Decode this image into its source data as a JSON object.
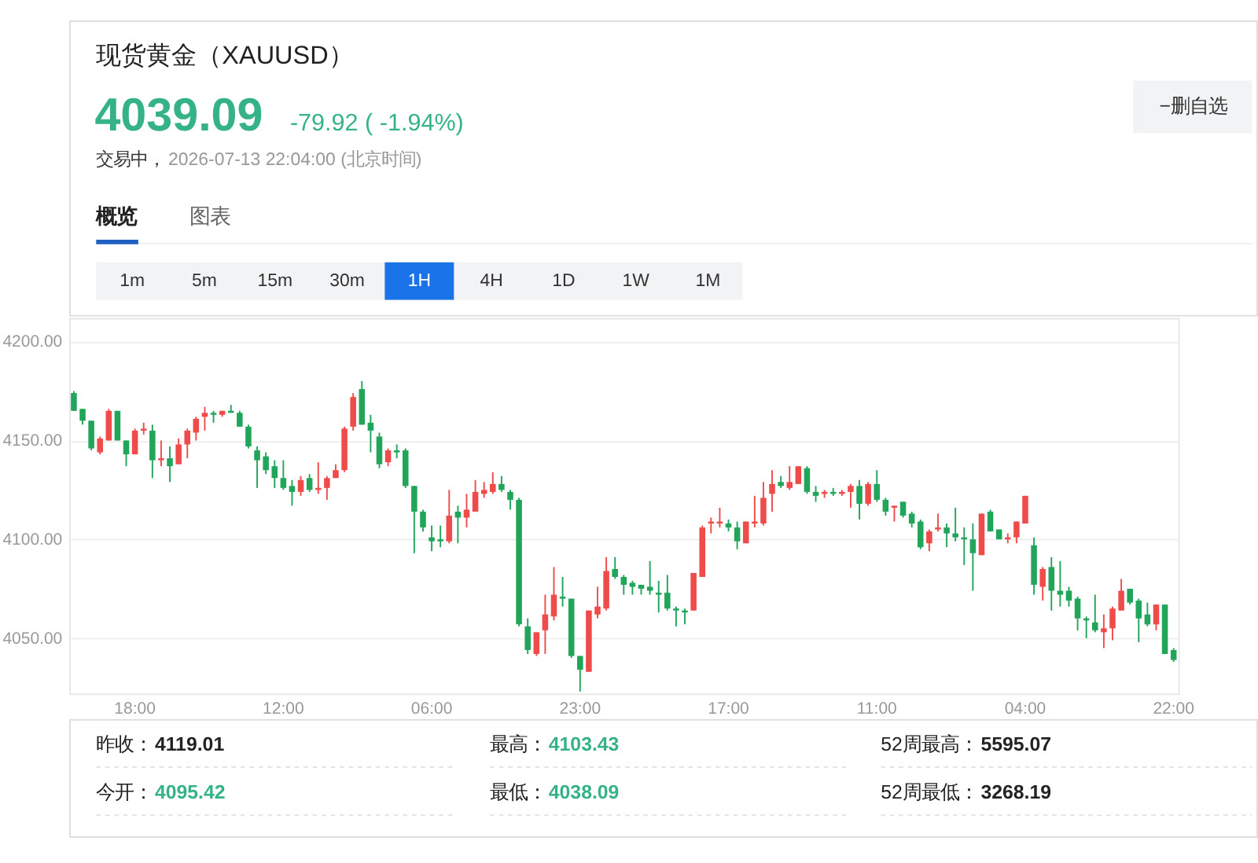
{
  "chart_data": {
    "type": "candlestick",
    "title": "现货黄金（XAUUSD）",
    "annotations": [
      "4039.09",
      "-79.92 ( -1.94%)",
      "交易中，",
      "2026-07-13 22:04:00 (北京时间)",
      "−删自选",
      "概览",
      "图表",
      "1m",
      "5m",
      "15m",
      "30m",
      "1H",
      "4H",
      "1D",
      "1W",
      "1M",
      "昨收：",
      "4119.01",
      "最高：",
      "4103.43",
      "52周最高：",
      "5595.07",
      "今开：",
      "4095.42",
      "最低：",
      "4038.09",
      "52周最低：",
      "3268.19"
    ],
    "categories": [
      null,
      null,
      null,
      null,
      null,
      null,
      null,
      "18:00",
      null,
      null,
      null,
      null,
      null,
      null,
      null,
      null,
      null,
      null,
      null,
      null,
      null,
      null,
      null,
      null,
      "12:00",
      null,
      null,
      null,
      null,
      null,
      null,
      null,
      null,
      null,
      null,
      null,
      null,
      null,
      null,
      null,
      null,
      "06:00",
      null,
      null,
      null,
      null,
      null,
      null,
      null,
      null,
      null,
      null,
      null,
      null,
      null,
      null,
      null,
      null,
      "23:00",
      null,
      null,
      null,
      null,
      null,
      null,
      null,
      null,
      null,
      null,
      null,
      null,
      null,
      null,
      null,
      null,
      "17:00",
      null,
      null,
      null,
      null,
      null,
      null,
      null,
      null,
      null,
      null,
      null,
      null,
      null,
      null,
      null,
      null,
      "11:00",
      null,
      null,
      null,
      null,
      null,
      null,
      null,
      null,
      null,
      null,
      null,
      null,
      null,
      null,
      null,
      null,
      "04:00",
      null,
      null,
      null,
      null,
      null,
      null,
      null,
      null,
      null,
      null,
      null,
      null,
      null,
      null,
      null,
      null,
      "22:00"
    ],
    "ohlc": [
      [
        4174,
        4175,
        4165,
        4165
      ],
      [
        4166,
        4166,
        4158,
        4160
      ],
      [
        4160,
        4160,
        4145,
        4146
      ],
      [
        4144,
        4152,
        4143,
        4151
      ],
      [
        4150,
        4166,
        4150,
        4165
      ],
      [
        4165,
        4165,
        4150,
        4150
      ],
      [
        4150,
        4150,
        4137,
        4143
      ],
      [
        4143,
        4156,
        4143,
        4155
      ],
      [
        4155,
        4159,
        4153,
        4156
      ],
      [
        4155,
        4158,
        4131,
        4140
      ],
      [
        4140,
        4150,
        4137,
        4141
      ],
      [
        4141,
        4147,
        4129,
        4137
      ],
      [
        4138,
        4151,
        4138,
        4148
      ],
      [
        4148,
        4156,
        4141,
        4155
      ],
      [
        4154,
        4162,
        4150,
        4161
      ],
      [
        4162,
        4167,
        4155,
        4164
      ],
      [
        4164,
        4165,
        4159,
        4163
      ],
      [
        4163,
        4165,
        4162,
        4165
      ],
      [
        4165,
        4168,
        4164,
        4164
      ],
      [
        4164,
        4165,
        4157,
        4157
      ],
      [
        4157,
        4158,
        4146,
        4147
      ],
      [
        4145,
        4147,
        4126,
        4140
      ],
      [
        4142,
        4144,
        4133,
        4135
      ],
      [
        4137,
        4140,
        4126,
        4131
      ],
      [
        4131,
        4140,
        4125,
        4126
      ],
      [
        4127,
        4130,
        4117,
        4124
      ],
      [
        4124,
        4132,
        4122,
        4130
      ],
      [
        4131,
        4133,
        4124,
        4125
      ],
      [
        4125,
        4139,
        4123,
        4126
      ],
      [
        4126,
        4132,
        4120,
        4131
      ],
      [
        4131,
        4138,
        4131,
        4135
      ],
      [
        4135,
        4157,
        4134,
        4156
      ],
      [
        4157,
        4174,
        4155,
        4172
      ],
      [
        4176,
        4180,
        4158,
        4158
      ],
      [
        4159,
        4163,
        4144,
        4155
      ],
      [
        4152,
        4154,
        4136,
        4138
      ],
      [
        4139,
        4146,
        4137,
        4145
      ],
      [
        4145,
        4148,
        4141,
        4144
      ],
      [
        4145,
        4146,
        4126,
        4127
      ],
      [
        4127,
        4127,
        4093,
        4114
      ],
      [
        4114,
        4115,
        4104,
        4106
      ],
      [
        4101,
        4107,
        4094,
        4099
      ],
      [
        4100,
        4107,
        4096,
        4099
      ],
      [
        4099,
        4125,
        4098,
        4112
      ],
      [
        4114,
        4117,
        4098,
        4111
      ],
      [
        4111,
        4123,
        4106,
        4115
      ],
      [
        4114,
        4130,
        4114,
        4124
      ],
      [
        4123,
        4129,
        4121,
        4125
      ],
      [
        4124,
        4134,
        4123,
        4128
      ],
      [
        4128,
        4132,
        4124,
        4125
      ],
      [
        4124,
        4125,
        4115,
        4120
      ],
      [
        4120,
        4121,
        4056,
        4057
      ],
      [
        4056,
        4060,
        4042,
        4044
      ],
      [
        4042,
        4053,
        4041,
        4053
      ],
      [
        4054,
        4072,
        4042,
        4062
      ],
      [
        4061,
        4086,
        4059,
        4072
      ],
      [
        4071,
        4081,
        4066,
        4070
      ],
      [
        4070,
        4070,
        4040,
        4041
      ],
      [
        4041,
        4041,
        4023,
        4034
      ],
      [
        4033,
        4064,
        4033,
        4064
      ],
      [
        4062,
        4076,
        4060,
        4066
      ],
      [
        4065,
        4091,
        4064,
        4084
      ],
      [
        4085,
        4091,
        4080,
        4081
      ],
      [
        4081,
        4082,
        4072,
        4077
      ],
      [
        4078,
        4079,
        4072,
        4076
      ],
      [
        4077,
        4077,
        4072,
        4075
      ],
      [
        4076,
        4089,
        4072,
        4074
      ],
      [
        4073,
        4079,
        4063,
        4072
      ],
      [
        4073,
        4082,
        4064,
        4065
      ],
      [
        4065,
        4066,
        4056,
        4064
      ],
      [
        4064,
        4065,
        4057,
        4063
      ],
      [
        4064,
        4083,
        4064,
        4083
      ],
      [
        4081,
        4107,
        4081,
        4106
      ],
      [
        4108,
        4111,
        4103,
        4109
      ],
      [
        4108,
        4116,
        4106,
        4109
      ],
      [
        4108,
        4110,
        4104,
        4106
      ],
      [
        4106,
        4109,
        4095,
        4099
      ],
      [
        4098,
        4109,
        4098,
        4109
      ],
      [
        4108,
        4122,
        4106,
        4109
      ],
      [
        4108,
        4129,
        4107,
        4121
      ],
      [
        4123,
        4135,
        4114,
        4128
      ],
      [
        4129,
        4132,
        4126,
        4127
      ],
      [
        4126,
        4137,
        4125,
        4129
      ],
      [
        4128,
        4137,
        4128,
        4137
      ],
      [
        4136,
        4137,
        4123,
        4124
      ],
      [
        4124,
        4127,
        4119,
        4122
      ],
      [
        4123,
        4125,
        4121,
        4124
      ],
      [
        4124,
        4126,
        4122,
        4123
      ],
      [
        4123,
        4125,
        4122,
        4124
      ],
      [
        4124,
        4128,
        4116,
        4127
      ],
      [
        4127,
        4130,
        4110,
        4118
      ],
      [
        4118,
        4129,
        4117,
        4128
      ],
      [
        4128,
        4135,
        4119,
        4120
      ],
      [
        4120,
        4121,
        4112,
        4114
      ],
      [
        4116,
        4117,
        4109,
        4117
      ],
      [
        4119,
        4119,
        4111,
        4112
      ],
      [
        4113,
        4114,
        4106,
        4108
      ],
      [
        4109,
        4110,
        4095,
        4096
      ],
      [
        4098,
        4105,
        4094,
        4104
      ],
      [
        4105,
        4113,
        4104,
        4106
      ],
      [
        4106,
        4108,
        4096,
        4103
      ],
      [
        4103,
        4116,
        4099,
        4101
      ],
      [
        4101,
        4106,
        4087,
        4100
      ],
      [
        4100,
        4108,
        4074,
        4093
      ],
      [
        4092,
        4113,
        4092,
        4113
      ],
      [
        4114,
        4115,
        4104,
        4104
      ],
      [
        4105,
        4105,
        4100,
        4100
      ],
      [
        4100,
        4103,
        4098,
        4101
      ],
      [
        4101,
        4109,
        4098,
        4109
      ],
      [
        4108,
        4122,
        4108,
        4122
      ],
      [
        4097,
        4101,
        4072,
        4077
      ],
      [
        4076,
        4086,
        4069,
        4085
      ],
      [
        4086,
        4091,
        4064,
        4074
      ],
      [
        4074,
        4089,
        4066,
        4072
      ],
      [
        4074,
        4076,
        4066,
        4069
      ],
      [
        4070,
        4071,
        4054,
        4060
      ],
      [
        4060,
        4061,
        4050,
        4059
      ],
      [
        4058,
        4072,
        4053,
        4054
      ],
      [
        4053,
        4062,
        4045,
        4055
      ],
      [
        4055,
        4066,
        4049,
        4065
      ],
      [
        4064,
        4080,
        4064,
        4074
      ],
      [
        4075,
        4075,
        4067,
        4068
      ],
      [
        4069,
        4070,
        4048,
        4060
      ],
      [
        4062,
        4068,
        4056,
        4057
      ],
      [
        4057,
        4067,
        4054,
        4067
      ],
      [
        4067,
        4067,
        4042,
        4042
      ],
      [
        4044,
        4045,
        4038,
        4039
      ]
    ],
    "colors": [
      "#21a55b",
      "#21a55b",
      "#21a55b",
      "#f04b4b",
      "#f04b4b",
      "#21a55b",
      "#21a55b",
      "#f04b4b",
      "#f04b4b",
      "#21a55b",
      "#f04b4b",
      "#21a55b",
      "#f04b4b",
      "#f04b4b",
      "#f04b4b",
      "#f04b4b",
      "#21a55b",
      "#f04b4b",
      "#21a55b",
      "#21a55b",
      "#21a55b",
      "#21a55b",
      "#21a55b",
      "#21a55b",
      "#21a55b",
      "#21a55b",
      "#f04b4b",
      "#21a55b",
      "#f04b4b",
      "#f04b4b",
      "#f04b4b",
      "#f04b4b",
      "#f04b4b",
      "#21a55b",
      "#21a55b",
      "#21a55b",
      "#f04b4b",
      "#21a55b",
      "#21a55b",
      "#21a55b",
      "#21a55b",
      "#21a55b",
      "#21a55b",
      "#f04b4b",
      "#21a55b",
      "#f04b4b",
      "#f04b4b",
      "#f04b4b",
      "#f04b4b",
      "#21a55b",
      "#21a55b",
      "#21a55b",
      "#21a55b",
      "#f04b4b",
      "#f04b4b",
      "#f04b4b",
      "#21a55b",
      "#21a55b",
      "#21a55b",
      "#f04b4b",
      "#f04b4b",
      "#f04b4b",
      "#21a55b",
      "#21a55b",
      "#21a55b",
      "#21a55b",
      "#21a55b",
      "#21a55b",
      "#21a55b",
      "#21a55b",
      "#21a55b",
      "#f04b4b",
      "#f04b4b",
      "#f04b4b",
      "#f04b4b",
      "#21a55b",
      "#21a55b",
      "#f04b4b",
      "#f04b4b",
      "#f04b4b",
      "#f04b4b",
      "#21a55b",
      "#f04b4b",
      "#f04b4b",
      "#21a55b",
      "#21a55b",
      "#f04b4b",
      "#21a55b",
      "#f04b4b",
      "#f04b4b",
      "#21a55b",
      "#f04b4b",
      "#21a55b",
      "#21a55b",
      "#f04b4b",
      "#21a55b",
      "#21a55b",
      "#21a55b",
      "#f04b4b",
      "#f04b4b",
      "#21a55b",
      "#21a55b",
      "#21a55b",
      "#21a55b",
      "#f04b4b",
      "#21a55b",
      "#21a55b",
      "#f04b4b",
      "#f04b4b",
      "#f04b4b",
      "#21a55b",
      "#f04b4b",
      "#21a55b",
      "#21a55b",
      "#21a55b",
      "#21a55b",
      "#21a55b",
      "#21a55b",
      "#f04b4b",
      "#f04b4b",
      "#f04b4b",
      "#21a55b",
      "#21a55b",
      "#21a55b",
      "#f04b4b",
      "#21a55b",
      "#21a55b"
    ],
    "ylim": [
      4022,
      4212
    ],
    "yticks": [
      {
        "value": 4050,
        "label": "4050.00"
      },
      {
        "value": 4100,
        "label": "4100.00"
      },
      {
        "value": 4150,
        "label": "4150.00"
      },
      {
        "value": 4200,
        "label": "4200.00"
      }
    ],
    "grid": "y"
  }
}
